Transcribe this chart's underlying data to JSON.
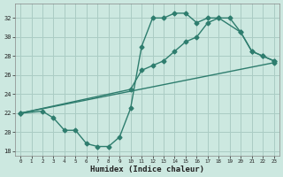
{
  "xlabel": "Humidex (Indice chaleur)",
  "xlim": [
    -0.5,
    23.5
  ],
  "ylim": [
    17.5,
    33.5
  ],
  "xticks": [
    0,
    1,
    2,
    3,
    4,
    5,
    6,
    7,
    8,
    9,
    10,
    11,
    12,
    13,
    14,
    15,
    16,
    17,
    18,
    19,
    20,
    21,
    22,
    23
  ],
  "yticks": [
    18,
    20,
    22,
    24,
    26,
    28,
    30,
    32
  ],
  "bg_color": "#cce8e0",
  "line_color": "#2e7d6e",
  "grid_color": "#aaccc4",
  "line1_x": [
    0,
    2,
    3,
    4,
    5,
    6,
    7,
    8,
    9,
    10,
    11,
    12,
    13,
    14,
    15,
    16,
    17,
    18,
    20,
    21,
    22,
    23
  ],
  "line1_y": [
    22,
    22.2,
    21.5,
    20.2,
    20.2,
    18.8,
    18.5,
    18.5,
    19.5,
    22.5,
    29,
    32,
    32,
    32.5,
    32.5,
    31.5,
    32,
    32,
    30.5,
    28.5,
    28,
    27.5
  ],
  "line2_x": [
    0,
    10,
    11,
    12,
    13,
    14,
    15,
    16,
    17,
    18,
    19,
    20,
    21,
    22,
    23
  ],
  "line2_y": [
    22,
    24.5,
    26.5,
    27,
    27.5,
    28.5,
    29.5,
    30,
    31.5,
    32,
    32,
    30.5,
    28.5,
    28,
    27.5
  ],
  "line3_x": [
    0,
    23
  ],
  "line3_y": [
    22,
    27.3
  ]
}
